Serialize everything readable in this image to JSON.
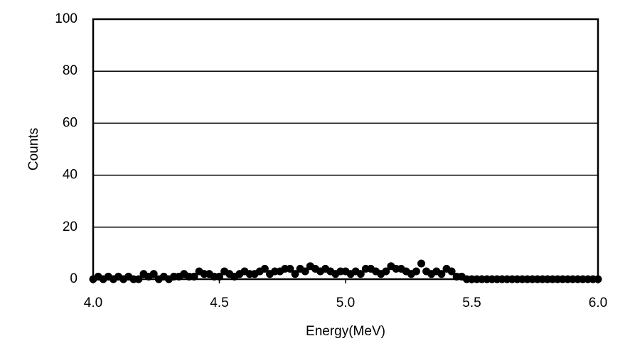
{
  "chart_data": {
    "type": "scatter",
    "x_label": "Energy(MeV)",
    "y_label": "Counts",
    "xlim": [
      4,
      6
    ],
    "ylim": [
      0,
      100
    ],
    "xticks": [
      {
        "value": 4,
        "label": "4.0"
      },
      4.5,
      {
        "value": 5,
        "label": "5.0"
      },
      5.5,
      {
        "value": 6,
        "label": "6.0"
      }
    ],
    "yticks": [
      0,
      20,
      40,
      60,
      80,
      100
    ],
    "grid": true,
    "series": [
      {
        "color": "#000000",
        "x": [
          4.0,
          4.02,
          4.04,
          4.06,
          4.08,
          4.1,
          4.12,
          4.14,
          4.16,
          4.18,
          4.2,
          4.22,
          4.24,
          4.26,
          4.28,
          4.3,
          4.32,
          4.34,
          4.36,
          4.38,
          4.4,
          4.42,
          4.44,
          4.46,
          4.48,
          4.5,
          4.52,
          4.54,
          4.56,
          4.58,
          4.6,
          4.62,
          4.64,
          4.66,
          4.68,
          4.7,
          4.72,
          4.74,
          4.76,
          4.78,
          4.8,
          4.82,
          4.84,
          4.86,
          4.88,
          4.9,
          4.92,
          4.94,
          4.96,
          4.98,
          5.0,
          5.02,
          5.04,
          5.06,
          5.08,
          5.1,
          5.12,
          5.14,
          5.16,
          5.18,
          5.2,
          5.22,
          5.24,
          5.26,
          5.28,
          5.3,
          5.32,
          5.34,
          5.36,
          5.38,
          5.4,
          5.42,
          5.44,
          5.46,
          5.48,
          5.5,
          5.52,
          5.54,
          5.56,
          5.58,
          5.6,
          5.62,
          5.64,
          5.66,
          5.68,
          5.7,
          5.72,
          5.74,
          5.76,
          5.78,
          5.8,
          5.82,
          5.84,
          5.86,
          5.88,
          5.9,
          5.92,
          5.94,
          5.96,
          5.98,
          6.0
        ],
        "values": [
          0,
          1,
          0,
          1,
          0,
          1,
          0,
          1,
          0,
          0,
          2,
          1,
          2,
          0,
          1,
          0,
          1,
          1,
          2,
          1,
          1,
          3,
          2,
          2,
          1,
          1,
          3,
          2,
          1,
          2,
          3,
          2,
          2,
          3,
          4,
          2,
          3,
          3,
          4,
          4,
          2,
          4,
          3,
          5,
          4,
          3,
          4,
          3,
          2,
          3,
          3,
          2,
          3,
          2,
          4,
          4,
          3,
          2,
          3,
          5,
          4,
          4,
          3,
          2,
          3,
          6,
          3,
          2,
          3,
          2,
          4,
          3,
          1,
          1,
          0,
          0,
          0,
          0,
          0,
          0,
          0,
          0,
          0,
          0,
          0,
          0,
          0,
          0,
          0,
          0,
          0,
          0,
          0,
          0,
          0,
          0,
          0,
          0,
          0,
          0,
          0
        ]
      }
    ]
  }
}
